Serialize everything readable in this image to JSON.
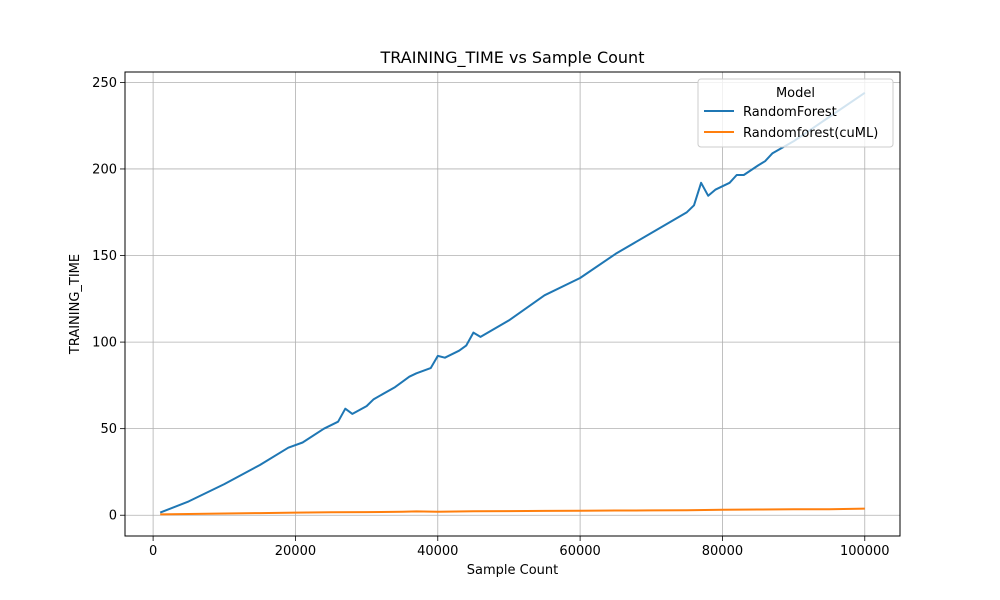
{
  "chart_data": {
    "type": "line",
    "title": "TRAINING_TIME vs Sample Count",
    "xlabel": "Sample Count",
    "ylabel": "TRAINING_TIME",
    "xlim": [
      -3950,
      104950
    ],
    "ylim": [
      -12,
      256
    ],
    "xticks": [
      0,
      20000,
      40000,
      60000,
      80000,
      100000
    ],
    "xtick_labels": [
      "0",
      "20000",
      "40000",
      "60000",
      "80000",
      "100000"
    ],
    "yticks": [
      0,
      50,
      100,
      150,
      200,
      250
    ],
    "ytick_labels": [
      "0",
      "50",
      "100",
      "150",
      "200",
      "250"
    ],
    "grid": true,
    "legend": {
      "title": "Model",
      "position": "top-right"
    },
    "series": [
      {
        "name": "RandomForest",
        "color": "#1f77b4",
        "x": [
          1000,
          5000,
          10000,
          15000,
          19000,
          21000,
          24000,
          26000,
          27000,
          28000,
          30000,
          31000,
          34000,
          36000,
          37000,
          39000,
          40000,
          41000,
          43000,
          44000,
          45000,
          46000,
          50000,
          55000,
          60000,
          65000,
          70000,
          75000,
          76000,
          77000,
          78000,
          79000,
          81000,
          82000,
          83000,
          85000,
          86000,
          87000,
          90000,
          95000,
          100000
        ],
        "y": [
          1.5,
          8,
          18,
          29,
          39,
          42,
          50,
          54,
          61.5,
          58.5,
          63,
          67,
          74,
          80,
          82,
          85,
          92,
          91,
          95,
          98,
          105.5,
          103,
          112.5,
          127,
          137,
          151,
          163,
          175,
          179,
          192,
          184.5,
          188,
          192,
          196.5,
          196.5,
          202,
          204.5,
          209,
          216,
          230,
          244
        ]
      },
      {
        "name": "Randomforest(cuML)",
        "color": "#ff7f0e",
        "x": [
          1000,
          5000,
          10000,
          15000,
          20000,
          25000,
          30000,
          35000,
          37000,
          40000,
          45000,
          50000,
          55000,
          60000,
          65000,
          70000,
          75000,
          80000,
          85000,
          90000,
          95000,
          100000
        ],
        "y": [
          0.5,
          0.7,
          1.0,
          1.2,
          1.5,
          1.7,
          1.8,
          2.0,
          2.2,
          2.0,
          2.3,
          2.4,
          2.5,
          2.6,
          2.7,
          2.8,
          2.9,
          3.2,
          3.3,
          3.4,
          3.5,
          3.8
        ]
      }
    ]
  }
}
